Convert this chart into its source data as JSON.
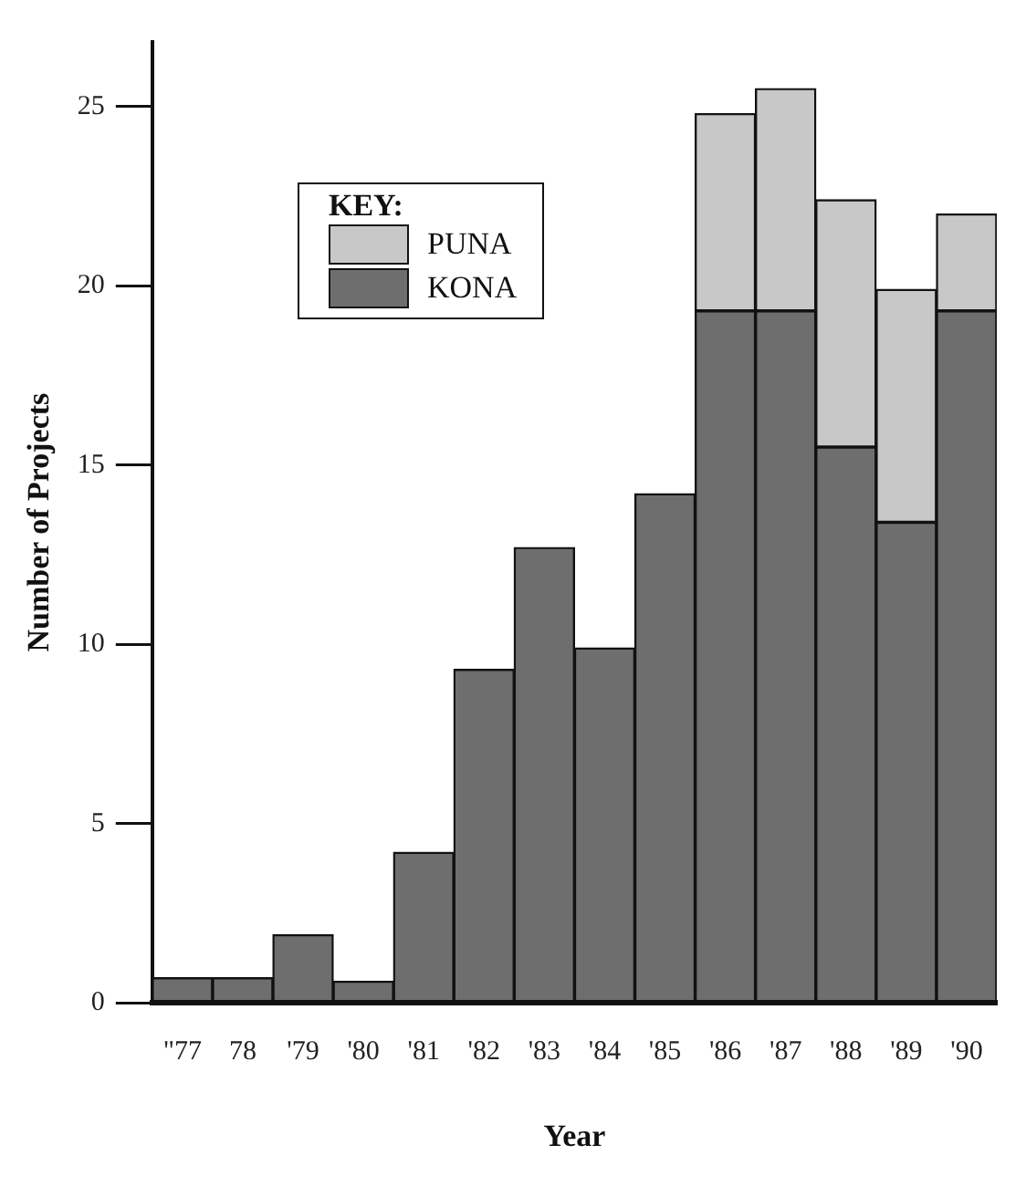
{
  "chart_data": {
    "type": "bar",
    "xlabel": "Year",
    "ylabel": "Number of Projects",
    "legend_title": "KEY:",
    "categories": [
      "\"77",
      "78",
      "'79",
      "'80",
      "'81",
      "'82",
      "'83",
      "'84",
      "'85",
      "'86",
      "'87",
      "'88",
      "'89",
      "'90"
    ],
    "stacked": true,
    "series": [
      {
        "name": "KONA",
        "color": "#6e6e6e",
        "values": [
          0.7,
          0.7,
          1.9,
          0.6,
          4.2,
          9.3,
          12.7,
          9.9,
          14.2,
          19.3,
          19.3,
          15.5,
          13.4,
          19.3
        ]
      },
      {
        "name": "PUNA",
        "color": "#c8c8c8",
        "values": [
          null,
          null,
          null,
          null,
          null,
          null,
          null,
          null,
          null,
          5.5,
          6.2,
          6.9,
          6.5,
          2.7
        ]
      }
    ],
    "ylim": [
      0,
      26.8
    ],
    "yticks": [
      0,
      5,
      10,
      15,
      20,
      25
    ],
    "legend": "top left"
  }
}
